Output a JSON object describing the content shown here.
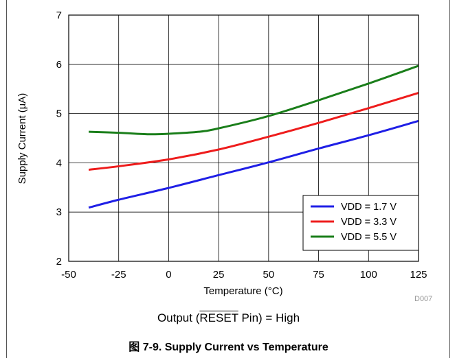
{
  "chart_data": {
    "type": "line",
    "xlabel": "Temperature (°C)",
    "ylabel": "Supply Current (µA)",
    "xlim": [
      -50,
      125
    ],
    "ylim": [
      2,
      7
    ],
    "xticks": [
      -50,
      -25,
      0,
      25,
      50,
      75,
      100,
      125
    ],
    "yticks": [
      2,
      3,
      4,
      5,
      6,
      7
    ],
    "grid": true,
    "legend_position": "bottom-right",
    "code": "D007",
    "series": [
      {
        "name": "VDD = 1.7 V",
        "color": "#1f1fe6",
        "x": [
          -40,
          -25,
          0,
          25,
          50,
          75,
          100,
          125
        ],
        "y": [
          3.09,
          3.25,
          3.49,
          3.75,
          4.01,
          4.29,
          4.56,
          4.85
        ]
      },
      {
        "name": "VDD = 3.3 V",
        "color": "#ee1c1c",
        "x": [
          -40,
          -25,
          0,
          25,
          50,
          75,
          100,
          125
        ],
        "y": [
          3.86,
          3.93,
          4.07,
          4.27,
          4.53,
          4.81,
          5.11,
          5.42
        ]
      },
      {
        "name": "VDD = 5.5 V",
        "color": "#1a7e1a",
        "x": [
          -40,
          -25,
          -10,
          0,
          15,
          25,
          50,
          75,
          100,
          125
        ],
        "y": [
          4.63,
          4.61,
          4.58,
          4.59,
          4.63,
          4.7,
          4.95,
          5.27,
          5.61,
          5.97
        ]
      }
    ]
  },
  "condition": {
    "prefix": "Output (",
    "pin": "RESET",
    "suffix": " Pin) = High"
  },
  "caption": "图 7-9. Supply Current vs Temperature"
}
